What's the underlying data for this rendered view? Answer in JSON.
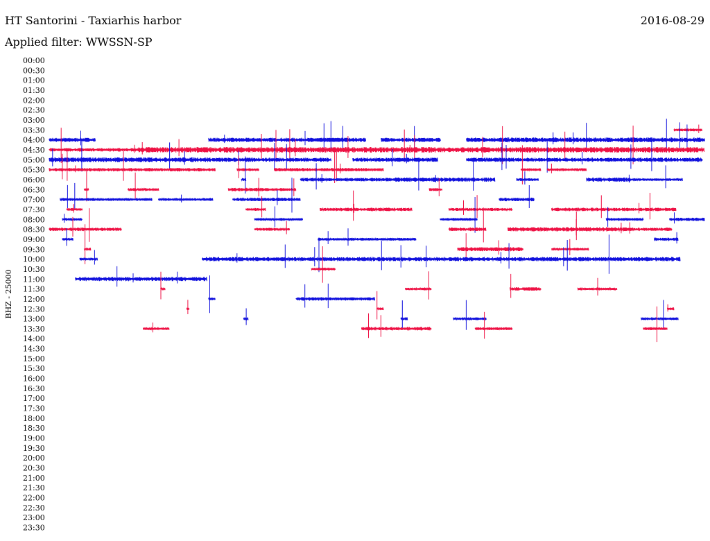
{
  "header": {
    "title": "HT Santorini - Taxiarhis harbor",
    "filter_label": "Applied filter: WWSSN-SP",
    "date": "2016-08-29"
  },
  "colors": {
    "odd_trace": "#1010dd",
    "even_trace": "#ee1144",
    "background": "#ffffff"
  },
  "chart_data": {
    "type": "helicorder",
    "title": "HT Santorini - Taxiarhis harbor",
    "subtitle": "Applied filter: WWSSN-SP",
    "date": "2016-08-29",
    "ylabel": "BHZ - 25000",
    "minutes_per_line": 30,
    "x_range_min": [
      0,
      30
    ],
    "rows": [
      "00:00",
      "00:30",
      "01:00",
      "01:30",
      "02:00",
      "02:30",
      "03:00",
      "03:30",
      "04:00",
      "04:30",
      "05:00",
      "05:30",
      "06:00",
      "06:30",
      "07:00",
      "07:30",
      "08:00",
      "08:30",
      "09:00",
      "09:30",
      "10:00",
      "10:30",
      "11:00",
      "11:30",
      "12:00",
      "12:30",
      "13:00",
      "13:30",
      "14:00",
      "14:30",
      "15:00",
      "15:30",
      "16:00",
      "16:30",
      "17:00",
      "17:30",
      "18:00",
      "18:30",
      "19:00",
      "19:30",
      "20:00",
      "20:30",
      "21:00",
      "21:30",
      "22:00",
      "22:30",
      "23:00",
      "23:30"
    ],
    "row_color_cycle": [
      "blue",
      "red"
    ],
    "series": [
      {
        "row": "03:30",
        "color": "red",
        "segments": [
          [
            28.6,
            29.9,
            0.2
          ]
        ]
      },
      {
        "row": "04:00",
        "color": "blue",
        "segments": [
          [
            0.0,
            2.1,
            0.3
          ],
          [
            7.3,
            14.5,
            0.3
          ],
          [
            12.5,
            14.0,
            0.3
          ],
          [
            15.2,
            17.9,
            0.3
          ],
          [
            19.1,
            24.6,
            0.35
          ],
          [
            24.6,
            30.0,
            0.35
          ]
        ]
      },
      {
        "row": "04:30",
        "color": "red",
        "segments": [
          [
            0.0,
            4.1,
            0.25
          ],
          [
            4.1,
            30.0,
            0.4
          ]
        ]
      },
      {
        "row": "05:00",
        "color": "blue",
        "segments": [
          [
            0.0,
            7.3,
            0.35
          ],
          [
            7.3,
            12.9,
            0.3
          ],
          [
            13.9,
            17.8,
            0.3
          ],
          [
            19.1,
            22.3,
            0.3
          ],
          [
            22.3,
            29.9,
            0.3
          ]
        ]
      },
      {
        "row": "05:30",
        "color": "red",
        "segments": [
          [
            0.0,
            7.6,
            0.25
          ],
          [
            8.6,
            9.6,
            0.2
          ],
          [
            10.3,
            15.3,
            0.25
          ],
          [
            21.6,
            22.5,
            0.2
          ],
          [
            22.8,
            24.6,
            0.2
          ]
        ]
      },
      {
        "row": "06:00",
        "color": "blue",
        "segments": [
          [
            8.8,
            9.0,
            0.2
          ],
          [
            11.5,
            15.5,
            0.25
          ],
          [
            15.5,
            20.4,
            0.3
          ],
          [
            21.4,
            22.4,
            0.2
          ],
          [
            24.6,
            26.6,
            0.3
          ],
          [
            26.6,
            29.0,
            0.2
          ]
        ]
      },
      {
        "row": "06:30",
        "color": "red",
        "segments": [
          [
            1.6,
            1.8,
            0.2
          ],
          [
            3.6,
            5.0,
            0.2
          ],
          [
            8.2,
            11.3,
            0.25
          ],
          [
            17.4,
            18.0,
            0.2
          ]
        ]
      },
      {
        "row": "07:00",
        "color": "blue",
        "segments": [
          [
            0.5,
            4.7,
            0.2
          ],
          [
            5.0,
            7.5,
            0.2
          ],
          [
            8.4,
            11.5,
            0.25
          ],
          [
            20.6,
            22.2,
            0.25
          ]
        ]
      },
      {
        "row": "07:30",
        "color": "red",
        "segments": [
          [
            0.8,
            1.5,
            0.2
          ],
          [
            9.0,
            9.9,
            0.2
          ],
          [
            12.4,
            16.6,
            0.25
          ],
          [
            18.3,
            21.2,
            0.2
          ],
          [
            23.0,
            28.7,
            0.25
          ]
        ]
      },
      {
        "row": "08:00",
        "color": "blue",
        "segments": [
          [
            0.6,
            1.5,
            0.2
          ],
          [
            9.4,
            11.6,
            0.2
          ],
          [
            17.9,
            19.6,
            0.2
          ],
          [
            25.5,
            27.2,
            0.2
          ],
          [
            28.4,
            30.0,
            0.25
          ]
        ]
      },
      {
        "row": "08:30",
        "color": "red",
        "segments": [
          [
            0.0,
            1.2,
            0.25
          ],
          [
            1.2,
            3.3,
            0.25
          ],
          [
            9.4,
            11.0,
            0.2
          ],
          [
            18.3,
            20.0,
            0.25
          ],
          [
            21.0,
            26.4,
            0.3
          ],
          [
            26.4,
            28.5,
            0.25
          ]
        ]
      },
      {
        "row": "09:00",
        "color": "blue",
        "segments": [
          [
            0.6,
            1.1,
            0.2
          ],
          [
            12.3,
            16.8,
            0.2
          ],
          [
            27.7,
            28.8,
            0.25
          ]
        ]
      },
      {
        "row": "09:30",
        "color": "red",
        "segments": [
          [
            1.6,
            1.9,
            0.2
          ],
          [
            18.7,
            21.7,
            0.3
          ],
          [
            23.0,
            24.7,
            0.2
          ]
        ]
      },
      {
        "row": "10:00",
        "color": "blue",
        "segments": [
          [
            1.4,
            2.2,
            0.2
          ],
          [
            7.0,
            14.6,
            0.3
          ],
          [
            14.6,
            19.7,
            0.3
          ],
          [
            19.7,
            28.9,
            0.3
          ]
        ]
      },
      {
        "row": "10:30",
        "color": "red",
        "segments": [
          [
            12.0,
            13.1,
            0.2
          ]
        ]
      },
      {
        "row": "11:00",
        "color": "blue",
        "segments": [
          [
            1.2,
            7.2,
            0.3
          ]
        ]
      },
      {
        "row": "11:30",
        "color": "red",
        "segments": [
          [
            5.1,
            5.3,
            0.2
          ],
          [
            16.3,
            17.5,
            0.2
          ],
          [
            21.1,
            22.5,
            0.25
          ],
          [
            24.2,
            26.0,
            0.2
          ]
        ]
      },
      {
        "row": "12:00",
        "color": "blue",
        "segments": [
          [
            7.3,
            7.6,
            0.2
          ],
          [
            11.3,
            14.9,
            0.25
          ]
        ]
      },
      {
        "row": "12:30",
        "color": "red",
        "segments": [
          [
            6.3,
            6.4,
            0.2
          ],
          [
            15.0,
            15.3,
            0.2
          ],
          [
            28.3,
            28.6,
            0.2
          ]
        ]
      },
      {
        "row": "13:00",
        "color": "blue",
        "segments": [
          [
            8.9,
            9.1,
            0.2
          ],
          [
            16.1,
            16.4,
            0.2
          ],
          [
            18.5,
            20.0,
            0.2
          ],
          [
            27.1,
            28.8,
            0.2
          ]
        ]
      },
      {
        "row": "13:30",
        "color": "red",
        "segments": [
          [
            4.3,
            5.5,
            0.2
          ],
          [
            14.3,
            17.5,
            0.25
          ],
          [
            19.5,
            21.2,
            0.2
          ],
          [
            27.2,
            28.3,
            0.2
          ]
        ]
      }
    ]
  }
}
